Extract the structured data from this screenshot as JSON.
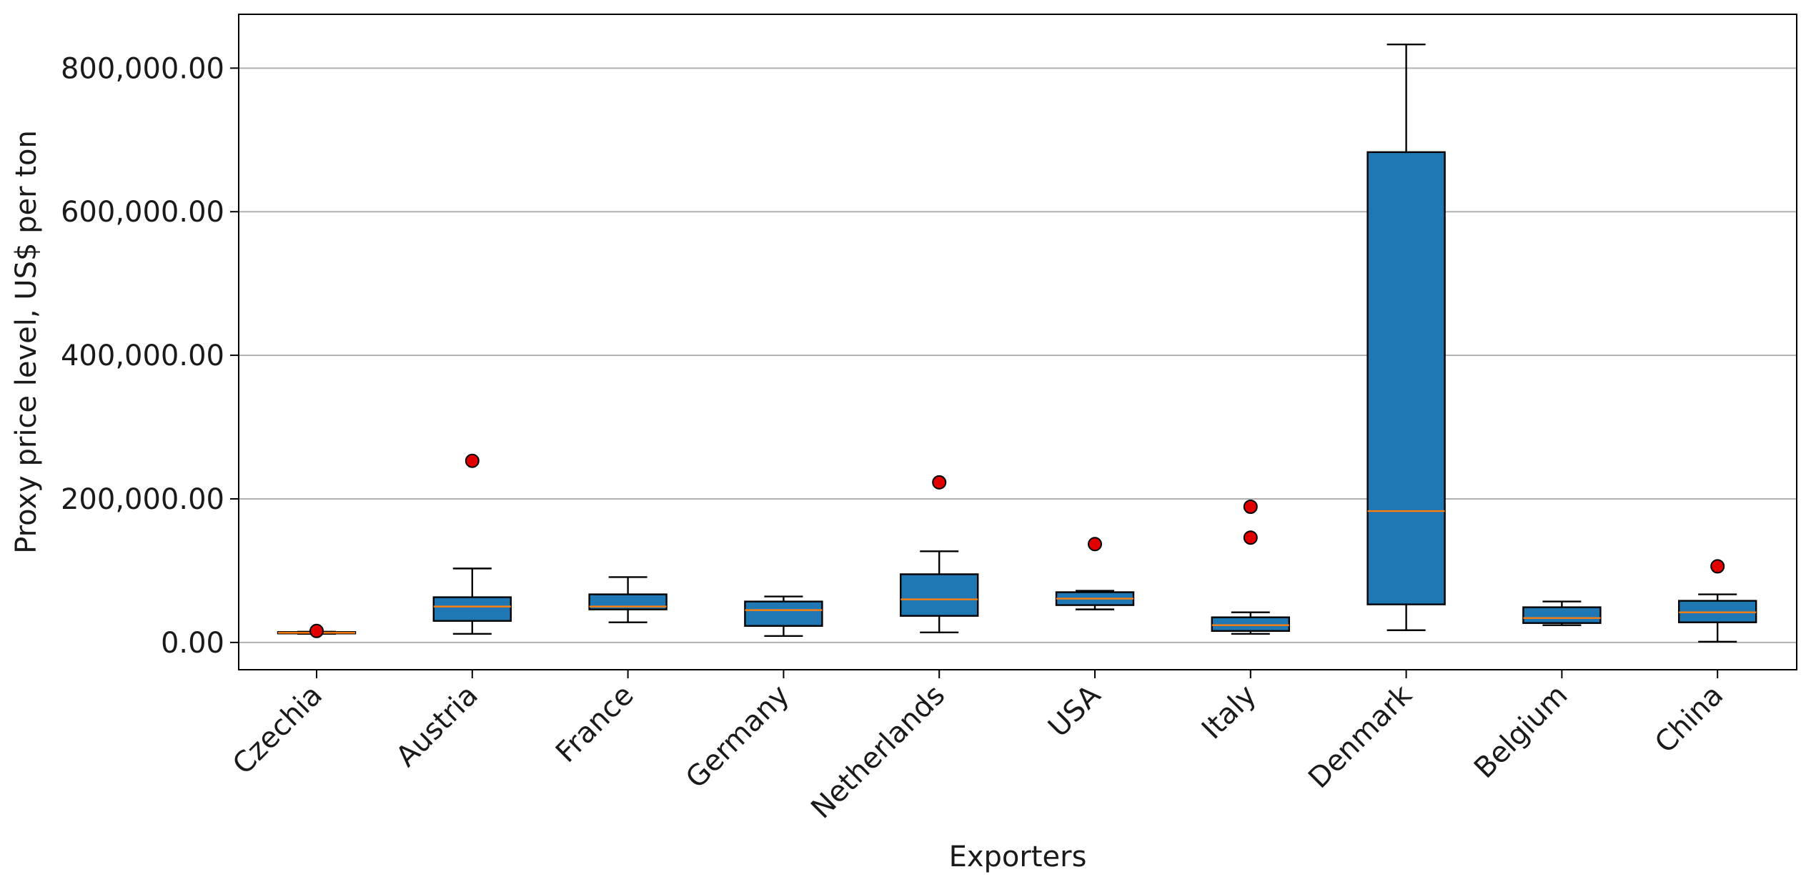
{
  "chart_data": {
    "type": "boxplot",
    "xlabel": "Exporters",
    "ylabel": "Proxy price level, US$ per ton",
    "ylim": [
      -38000,
      875000
    ],
    "yticks": [
      0,
      200000,
      400000,
      600000,
      800000
    ],
    "ytick_labels": [
      "0.00",
      "200,000.00",
      "400,000.00",
      "600,000.00",
      "800,000.00"
    ],
    "grid": "horizontal",
    "box_color": "#1f77b4",
    "median_color": "#ff7f0e",
    "outlier_color": "#e00000",
    "categories": [
      "Czechia",
      "Austria",
      "France",
      "Germany",
      "Netherlands",
      "USA",
      "Italy",
      "Denmark",
      "Belgium",
      "China"
    ],
    "boxes": [
      {
        "min": 12000,
        "q1": 12500,
        "median": 13500,
        "q3": 14500,
        "max": 15000,
        "outliers": [
          16000
        ]
      },
      {
        "min": 12000,
        "q1": 30000,
        "median": 50000,
        "q3": 63000,
        "max": 103000,
        "outliers": [
          253000
        ]
      },
      {
        "min": 28000,
        "q1": 46000,
        "median": 50000,
        "q3": 67000,
        "max": 91000,
        "outliers": []
      },
      {
        "min": 9000,
        "q1": 23000,
        "median": 45000,
        "q3": 57000,
        "max": 64000,
        "outliers": []
      },
      {
        "min": 14000,
        "q1": 37000,
        "median": 60000,
        "q3": 95000,
        "max": 127000,
        "outliers": [
          223000
        ]
      },
      {
        "min": 46000,
        "q1": 52000,
        "median": 61000,
        "q3": 70000,
        "max": 72000,
        "outliers": [
          137000
        ]
      },
      {
        "min": 12000,
        "q1": 16000,
        "median": 24000,
        "q3": 35000,
        "max": 42000,
        "outliers": [
          146000,
          189000
        ]
      },
      {
        "min": 17000,
        "q1": 53000,
        "median": 183000,
        "q3": 683000,
        "max": 833000,
        "outliers": []
      },
      {
        "min": 24000,
        "q1": 27000,
        "median": 34000,
        "q3": 49000,
        "max": 57000,
        "outliers": []
      },
      {
        "min": 1000,
        "q1": 28000,
        "median": 42000,
        "q3": 58000,
        "max": 67000,
        "outliers": [
          106000
        ]
      }
    ]
  }
}
